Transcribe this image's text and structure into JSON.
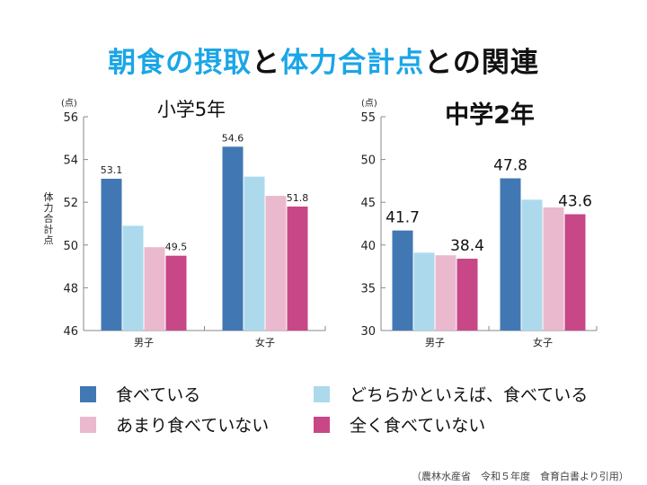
{
  "title": {
    "part1": "朝食の摂取",
    "part2": "と",
    "part3": "体力合計点",
    "part4": "との関連"
  },
  "y_axis_title": "体力合計点",
  "source": "（農林水産省　令和５年度　食育白書より引用）",
  "legend": [
    {
      "label": "食べている",
      "color": "#4178b4"
    },
    {
      "label": "どちらかといえば、食べている",
      "color": "#acdaec"
    },
    {
      "label": "あまり食べていない",
      "color": "#ebb9ce"
    },
    {
      "label": "全く食べていない",
      "color": "#c74787"
    }
  ],
  "chart_data": [
    {
      "type": "bar",
      "title": "小学5年",
      "ylabel": "(点)",
      "ylim": [
        46,
        56
      ],
      "yticks": [
        "46",
        "48",
        "50",
        "52",
        "54",
        "56"
      ],
      "categories": [
        "男子",
        "女子"
      ],
      "series": [
        {
          "name": "食べている",
          "values": [
            53.1,
            54.6
          ]
        },
        {
          "name": "どちらかといえば、食べている",
          "values": [
            50.9,
            53.2
          ]
        },
        {
          "name": "あまり食べていない",
          "values": [
            49.9,
            52.3
          ]
        },
        {
          "name": "全く食べていない",
          "values": [
            49.5,
            51.8
          ]
        }
      ],
      "data_labels": [
        {
          "series": 0,
          "category": 0,
          "text": "53.1"
        },
        {
          "series": 3,
          "category": 0,
          "text": "49.5"
        },
        {
          "series": 0,
          "category": 1,
          "text": "54.6"
        },
        {
          "series": 3,
          "category": 1,
          "text": "51.8"
        }
      ]
    },
    {
      "type": "bar",
      "title": "中学2年",
      "ylabel": "(点)",
      "ylim": [
        30,
        55
      ],
      "yticks": [
        "30",
        "35",
        "40",
        "45",
        "50",
        "55"
      ],
      "categories": [
        "男子",
        "女子"
      ],
      "series": [
        {
          "name": "食べている",
          "values": [
            41.7,
            47.8
          ]
        },
        {
          "name": "どちらかといえば、食べている",
          "values": [
            39.1,
            45.3
          ]
        },
        {
          "name": "あまり食べていない",
          "values": [
            38.8,
            44.4
          ]
        },
        {
          "name": "全く食べていない",
          "values": [
            38.4,
            43.6
          ]
        }
      ],
      "data_labels": [
        {
          "series": 0,
          "category": 0,
          "text": "41.7"
        },
        {
          "series": 3,
          "category": 0,
          "text": "38.4"
        },
        {
          "series": 0,
          "category": 1,
          "text": "47.8"
        },
        {
          "series": 3,
          "category": 1,
          "text": "43.6"
        }
      ]
    }
  ]
}
